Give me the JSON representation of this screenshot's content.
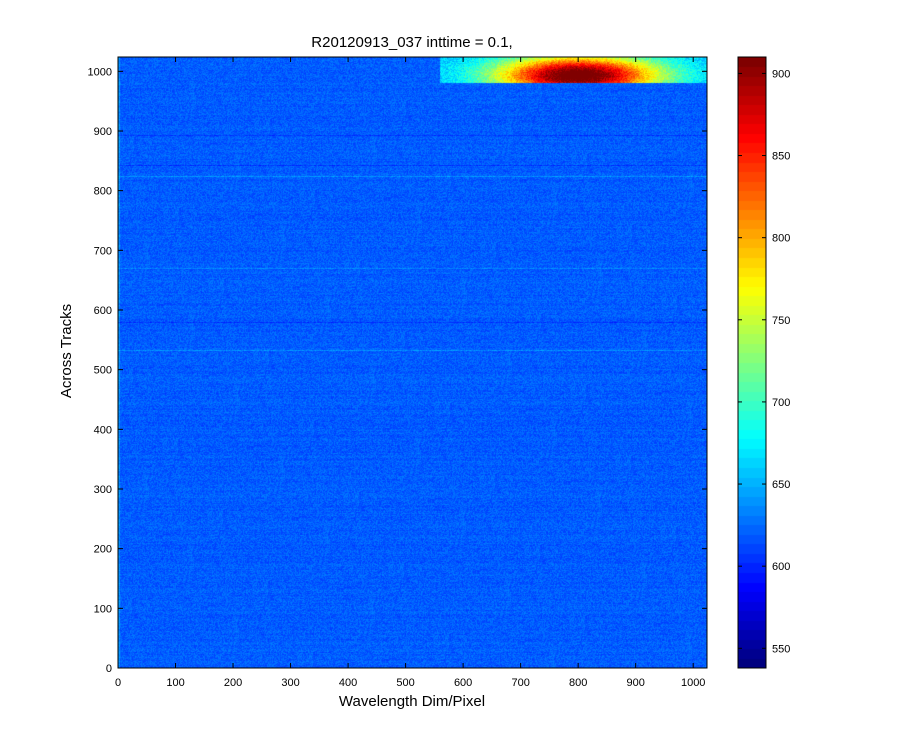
{
  "chart_data": {
    "type": "heatmap",
    "title": "R20120913_037 inttime = 0.1,",
    "xlabel": "Wavelength Dim/Pixel",
    "ylabel": "Across Tracks",
    "xlim": [
      0,
      1024
    ],
    "ylim": [
      0,
      1024
    ],
    "x_ticks": [
      0,
      100,
      200,
      300,
      400,
      500,
      600,
      700,
      800,
      900,
      1000
    ],
    "y_ticks": [
      0,
      100,
      200,
      300,
      400,
      500,
      600,
      700,
      800,
      900,
      1000
    ],
    "colorbar": {
      "colormap": "jet",
      "clim": [
        538,
        910
      ],
      "ticks": [
        550,
        600,
        650,
        700,
        750,
        800,
        850,
        900
      ]
    },
    "background_level": 618,
    "noise_amplitude": 12,
    "hot_region": {
      "x_range": [
        560,
        1024
      ],
      "y_range": [
        980,
        1024
      ],
      "peak_center_x": 800,
      "peak_center_y": 993,
      "peak_value": 905
    },
    "bright_rows": [
      533,
      670,
      825
    ],
    "dark_rows": [
      843,
      893,
      580
    ]
  }
}
